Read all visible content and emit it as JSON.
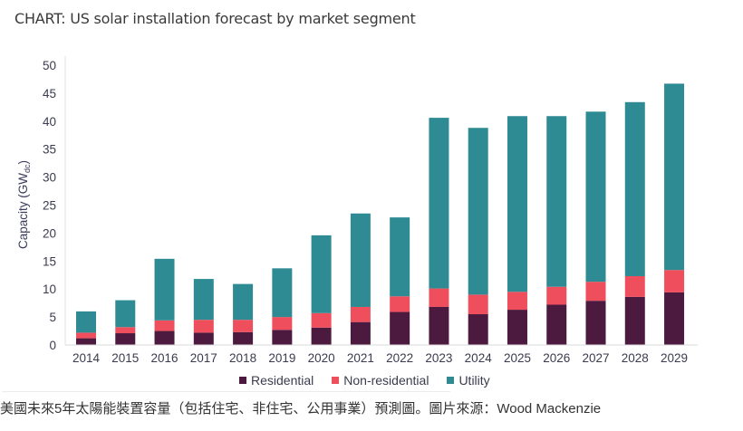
{
  "header": {
    "title": "CHART: US solar installation forecast by market segment"
  },
  "caption": "美國未來5年太陽能裝置容量（包括住宅、非住宅、公用事業）預測圖。圖片來源：Wood Mackenzie",
  "chart_data": {
    "type": "bar",
    "stacked": true,
    "title": "CHART: US solar installation forecast by market segment",
    "xlabel": "",
    "ylabel": "Capacity (GWdc)",
    "ylabel_main": "Capacity (GW",
    "ylabel_sub": "dc",
    "ylabel_close": ")",
    "ylim": [
      0,
      50
    ],
    "yticks": [
      0,
      5,
      10,
      15,
      20,
      25,
      30,
      35,
      40,
      45,
      50
    ],
    "grid": false,
    "legend_position": "bottom",
    "categories": [
      "2014",
      "2015",
      "2016",
      "2017",
      "2018",
      "2019",
      "2020",
      "2021",
      "2022",
      "2023",
      "2024",
      "2025",
      "2026",
      "2027",
      "2028",
      "2029"
    ],
    "series": [
      {
        "name": "Residential",
        "color": "#4d1a3f",
        "values": [
          1.2,
          2.1,
          2.5,
          2.2,
          2.3,
          2.7,
          3.1,
          4.1,
          5.9,
          6.8,
          5.5,
          6.3,
          7.2,
          7.9,
          8.6,
          9.4
        ]
      },
      {
        "name": "Non-residential",
        "color": "#ef4f5c",
        "values": [
          1.0,
          1.1,
          1.9,
          2.3,
          2.2,
          2.3,
          2.6,
          2.7,
          2.8,
          3.3,
          3.5,
          3.2,
          3.2,
          3.4,
          3.7,
          4.0
        ]
      },
      {
        "name": "Utility",
        "color": "#2e8b93",
        "values": [
          3.8,
          4.8,
          11.0,
          7.3,
          6.4,
          8.7,
          13.9,
          16.7,
          14.1,
          30.5,
          29.8,
          31.4,
          30.5,
          30.4,
          31.1,
          33.3
        ]
      }
    ]
  }
}
